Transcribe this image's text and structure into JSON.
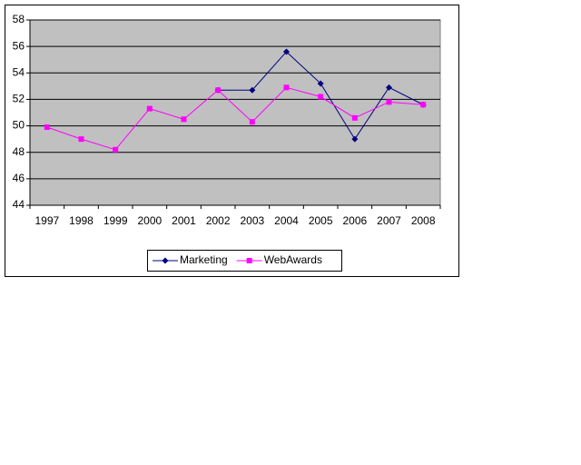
{
  "chart_data": {
    "type": "line",
    "categories": [
      "1997",
      "1998",
      "1999",
      "2000",
      "2001",
      "2002",
      "2003",
      "2004",
      "2005",
      "2006",
      "2007",
      "2008"
    ],
    "series": [
      {
        "name": "Marketing",
        "color": "#000080",
        "marker": "diamond",
        "values": [
          null,
          null,
          null,
          null,
          null,
          52.7,
          52.7,
          55.6,
          53.2,
          49.0,
          52.9,
          51.6
        ]
      },
      {
        "name": "WebAwards",
        "color": "#ff00ff",
        "marker": "square",
        "values": [
          49.9,
          49.0,
          48.2,
          51.3,
          50.5,
          52.7,
          50.3,
          52.9,
          52.2,
          50.6,
          51.8,
          51.6
        ]
      }
    ],
    "ylim": [
      44,
      58
    ],
    "yticks": [
      44,
      46,
      48,
      50,
      52,
      54,
      56,
      58
    ],
    "grid": true,
    "legend": "bottom"
  }
}
